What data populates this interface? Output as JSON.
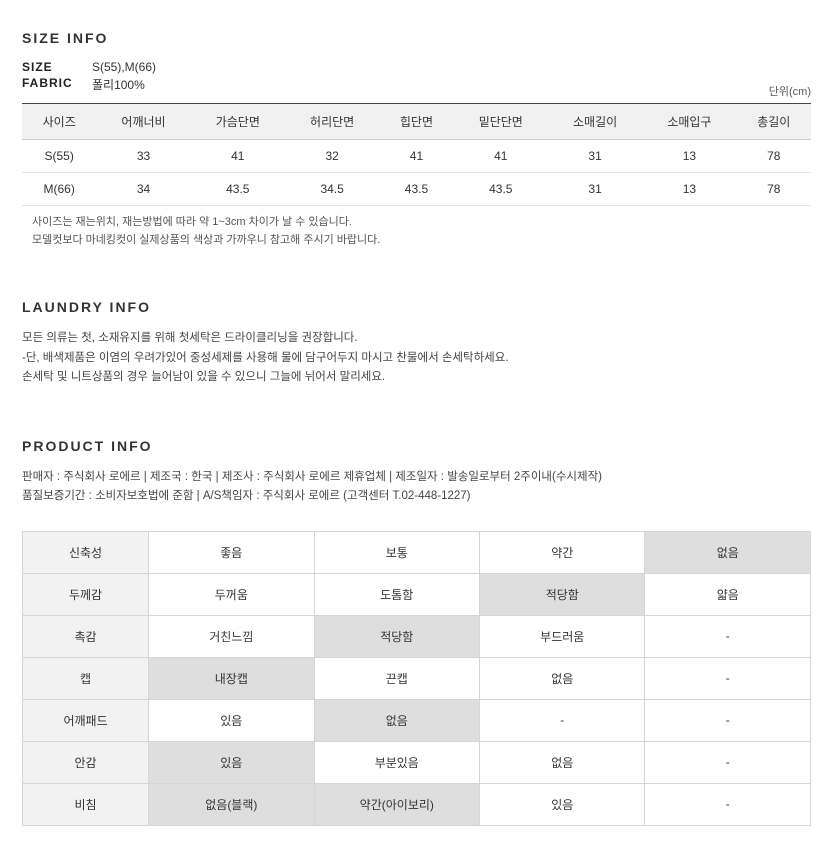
{
  "size_info": {
    "title": "SIZE INFO",
    "size_label": "SIZE",
    "size_value": "S(55),M(66)",
    "fabric_label": "FABRIC",
    "fabric_value": "폴리100%",
    "unit": "단위(cm)",
    "headers": [
      "사이즈",
      "어깨너비",
      "가슴단면",
      "허리단면",
      "힙단면",
      "밑단단면",
      "소매길이",
      "소매입구",
      "총길이"
    ],
    "rows": [
      [
        "S(55)",
        "33",
        "41",
        "32",
        "41",
        "41",
        "31",
        "13",
        "78"
      ],
      [
        "M(66)",
        "34",
        "43.5",
        "34.5",
        "43.5",
        "43.5",
        "31",
        "13",
        "78"
      ]
    ],
    "note1": "사이즈는 재는위치, 재는방법에 따라 약 1~3cm 차이가 날 수 있습니다.",
    "note2": "모델컷보다 마네킹컷이 실제상품의 색상과 가까우니 참고해 주시기 바랍니다."
  },
  "laundry": {
    "title": "LAUNDRY INFO",
    "line1": "모든 의류는 첫, 소재유지를 위해 첫세탁은 드라이클리닝을 권장합니다.",
    "line2": "-단, 배색제품은 이염의 우려가있어 중성세제를 사용해 물에 담구어두지 마시고 찬물에서 손세탁하세요.",
    "line3": "손세탁 및 니트상품의 경우 늘어남이 있을 수 있으니 그늘에 뉘어서 말리세요."
  },
  "product": {
    "title": "PRODUCT INFO",
    "line1": "판매자 : 주식회사 로에르 | 제조국 : 한국 | 제조사 : 주식회사 로에르 제휴업체 | 제조일자 : 발송일로부터 2주이내(수시제작)",
    "line2": "품질보증기간 : 소비자보호법에 준함 | A/S책임자 : 주식회사 로에르 (고객센터 T.02-448-1227)"
  },
  "attr": {
    "rows": [
      {
        "label": "신축성",
        "cells": [
          "좋음",
          "보통",
          "약간",
          "없음"
        ],
        "hl": [
          3
        ]
      },
      {
        "label": "두께감",
        "cells": [
          "두꺼움",
          "도톰함",
          "적당함",
          "얇음"
        ],
        "hl": [
          2
        ]
      },
      {
        "label": "촉감",
        "cells": [
          "거친느낌",
          "적당함",
          "부드러움",
          "-"
        ],
        "hl": [
          1
        ]
      },
      {
        "label": "캡",
        "cells": [
          "내장캡",
          "끈캡",
          "없음",
          "-"
        ],
        "hl": [
          0
        ]
      },
      {
        "label": "어깨패드",
        "cells": [
          "있음",
          "없음",
          "-",
          "-"
        ],
        "hl": [
          1
        ]
      },
      {
        "label": "안감",
        "cells": [
          "있음",
          "부분있음",
          "없음",
          "-"
        ],
        "hl": [
          0
        ]
      },
      {
        "label": "비침",
        "cells": [
          "없음(블랙)",
          "약간(아이보리)",
          "있음",
          "-"
        ],
        "hl": [
          0,
          1
        ]
      }
    ]
  }
}
